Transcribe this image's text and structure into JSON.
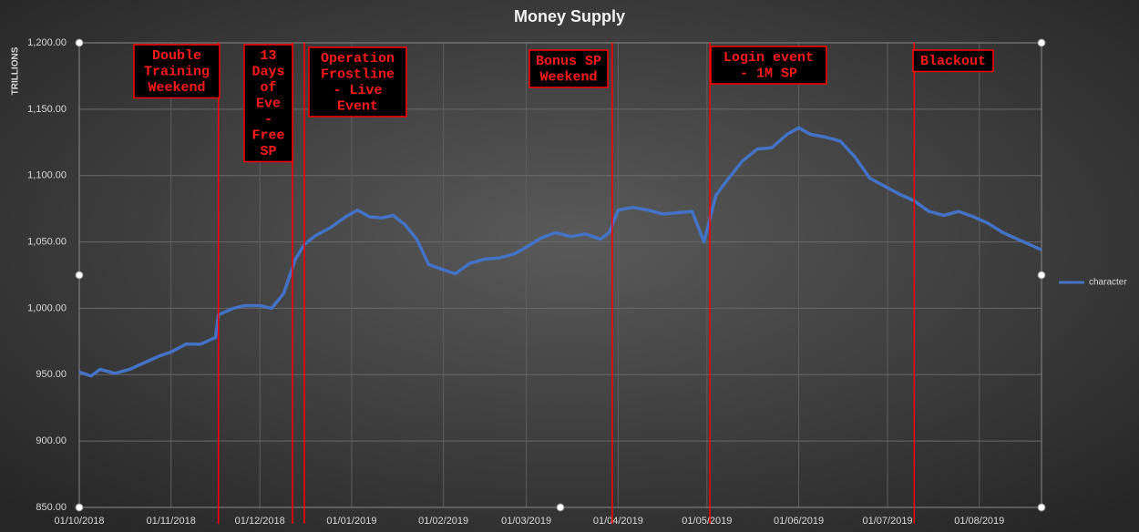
{
  "chart_data": {
    "type": "line",
    "title": "Money Supply",
    "y_label": "TRILLIONS",
    "x": [
      "2018-10-01",
      "2018-10-05",
      "2018-10-08",
      "2018-10-13",
      "2018-10-18",
      "2018-10-23",
      "2018-10-28",
      "2018-11-01",
      "2018-11-06",
      "2018-11-11",
      "2018-11-16",
      "2018-11-17",
      "2018-11-22",
      "2018-11-26",
      "2018-12-01",
      "2018-12-05",
      "2018-12-09",
      "2018-12-13",
      "2018-12-16",
      "2018-12-20",
      "2018-12-25",
      "2018-12-30",
      "2019-01-03",
      "2019-01-07",
      "2019-01-11",
      "2019-01-15",
      "2019-01-19",
      "2019-01-23",
      "2019-01-27",
      "2019-02-01",
      "2019-02-05",
      "2019-02-10",
      "2019-02-15",
      "2019-02-20",
      "2019-02-25",
      "2019-03-01",
      "2019-03-06",
      "2019-03-11",
      "2019-03-16",
      "2019-03-21",
      "2019-03-26",
      "2019-03-29",
      "2019-04-01",
      "2019-04-06",
      "2019-04-11",
      "2019-04-16",
      "2019-04-21",
      "2019-04-26",
      "2019-04-30",
      "2019-05-04",
      "2019-05-08",
      "2019-05-13",
      "2019-05-18",
      "2019-05-23",
      "2019-05-28",
      "2019-06-01",
      "2019-06-05",
      "2019-06-10",
      "2019-06-15",
      "2019-06-20",
      "2019-06-25",
      "2019-06-30",
      "2019-07-05",
      "2019-07-10",
      "2019-07-15",
      "2019-07-20",
      "2019-07-25",
      "2019-07-30",
      "2019-08-04",
      "2019-08-09",
      "2019-08-14",
      "2019-08-19",
      "2019-08-22"
    ],
    "series": [
      {
        "name": "character",
        "color": "#4472c4",
        "values": [
          952,
          949,
          954,
          951,
          954,
          959,
          964,
          967,
          973,
          973,
          978,
          995,
          1000,
          1002,
          1002,
          1000,
          1011,
          1037,
          1048,
          1055,
          1061,
          1069,
          1074,
          1069,
          1068,
          1070,
          1063,
          1052,
          1033,
          1029,
          1026,
          1034,
          1037,
          1038,
          1041,
          1046,
          1053,
          1057,
          1054,
          1056,
          1052,
          1057,
          1074,
          1076,
          1074,
          1071,
          1072,
          1073,
          1050,
          1085,
          1097,
          1111,
          1120,
          1121,
          1131,
          1136,
          1131,
          1129,
          1126,
          1114,
          1098,
          1092,
          1086,
          1081,
          1073,
          1070,
          1073,
          1069,
          1064,
          1057,
          1052,
          1047,
          1044
        ]
      }
    ],
    "xlim": [
      "2018-10-01",
      "2019-08-22"
    ],
    "xticks": [
      {
        "value": "2018-10-01",
        "label": "01/10/2018"
      },
      {
        "value": "2018-11-01",
        "label": "01/11/2018"
      },
      {
        "value": "2018-12-01",
        "label": "01/12/2018"
      },
      {
        "value": "2019-01-01",
        "label": "01/01/2019"
      },
      {
        "value": "2019-02-01",
        "label": "01/02/2019"
      },
      {
        "value": "2019-03-01",
        "label": "01/03/2019"
      },
      {
        "value": "2019-04-01",
        "label": "01/04/2019"
      },
      {
        "value": "2019-05-01",
        "label": "01/05/2019"
      },
      {
        "value": "2019-06-01",
        "label": "01/06/2019"
      },
      {
        "value": "2019-07-01",
        "label": "01/07/2019"
      },
      {
        "value": "2019-08-01",
        "label": "01/08/2019"
      }
    ],
    "ylim": [
      850,
      1200
    ],
    "yticks": [
      {
        "value": 850,
        "label": "850.00"
      },
      {
        "value": 900,
        "label": "900.00"
      },
      {
        "value": 950,
        "label": "950.00"
      },
      {
        "value": 1000,
        "label": "1,000.00"
      },
      {
        "value": 1050,
        "label": "1,050.00"
      },
      {
        "value": 1100,
        "label": "1,100.00"
      },
      {
        "value": 1150,
        "label": "1,150.00"
      },
      {
        "value": 1200,
        "label": "1,200.00"
      }
    ],
    "grid": true,
    "legend": "right",
    "annotations": [
      {
        "x": "2018-11-17",
        "lines": [
          "Double",
          "Training",
          "Weekend"
        ]
      },
      {
        "x": "2018-12-12",
        "lines": [
          "13",
          "Days",
          "of",
          "Eve",
          "-",
          "Free",
          "SP"
        ]
      },
      {
        "x": "2018-12-16",
        "lines": [
          "Operation",
          "Frostline",
          "- Live",
          "Event"
        ]
      },
      {
        "x": "2019-03-30",
        "lines": [
          "Bonus SP",
          "Weekend"
        ]
      },
      {
        "x": "2019-05-02",
        "lines": [
          "Login event",
          "- 1M SP"
        ]
      },
      {
        "x": "2019-07-10",
        "lines": [
          "Blackout"
        ]
      }
    ]
  }
}
